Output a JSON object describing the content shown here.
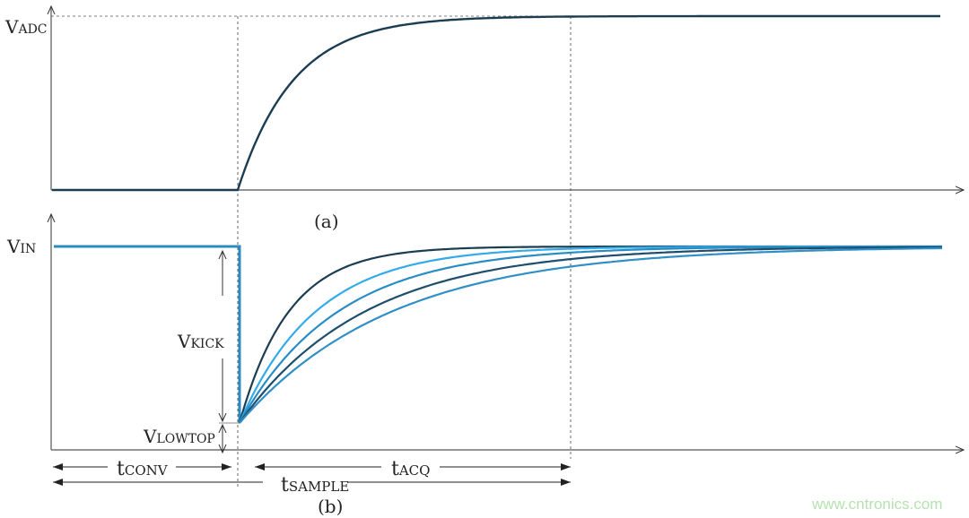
{
  "panel_a": {
    "caption": "(a)",
    "y_label_main": "V",
    "y_label_sub": "ADC"
  },
  "panel_b": {
    "caption": "(b)",
    "y_label_main": "V",
    "y_label_sub": "IN",
    "kick_main": "V",
    "kick_sub": "KICK",
    "lowtop_main": "V",
    "lowtop_sub": "LOWTOP",
    "tconv_main": "t",
    "tconv_sub": "CONV",
    "tacq_main": "t",
    "tacq_sub": "ACQ",
    "tsample_main": "t",
    "tsample_sub": "SAMPLE",
    "curve_colors": [
      "#1b3d52",
      "#33aaea",
      "#2a8cc4",
      "#1e4e6e",
      "#2f8fc6"
    ]
  },
  "colors": {
    "axis": "#555555",
    "vin": "#2a8cc4",
    "adc": "#1b3d52"
  },
  "watermark": "www.cntronics.com"
}
